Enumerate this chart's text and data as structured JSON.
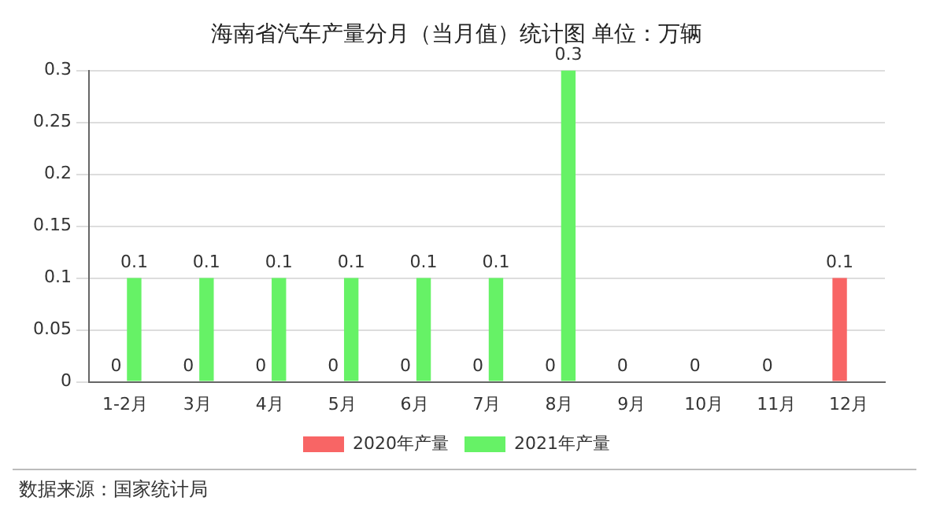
{
  "chart_data": {
    "type": "bar",
    "title": "海南省汽车产量分月（当月值）统计图 单位：万辆",
    "categories": [
      "1-2月",
      "3月",
      "4月",
      "5月",
      "6月",
      "7月",
      "8月",
      "9月",
      "10月",
      "11月",
      "12月"
    ],
    "series": [
      {
        "name": "2020年产量",
        "color": "#f86565",
        "values": [
          0,
          0,
          0,
          0,
          0,
          0,
          0,
          0,
          0,
          0,
          0.1
        ]
      },
      {
        "name": "2021年产量",
        "color": "#66f266",
        "values": [
          0.1,
          0.1,
          0.1,
          0.1,
          0.1,
          0.1,
          0.3,
          null,
          null,
          null,
          null
        ]
      }
    ],
    "ylim": [
      0,
      0.3
    ],
    "yticks": [
      0,
      0.05,
      0.1,
      0.15,
      0.2,
      0.25,
      0.3
    ],
    "grid": "y",
    "legend": "bottom",
    "data_labels": true,
    "annotations": [
      "数据来源：国家统计局"
    ]
  }
}
